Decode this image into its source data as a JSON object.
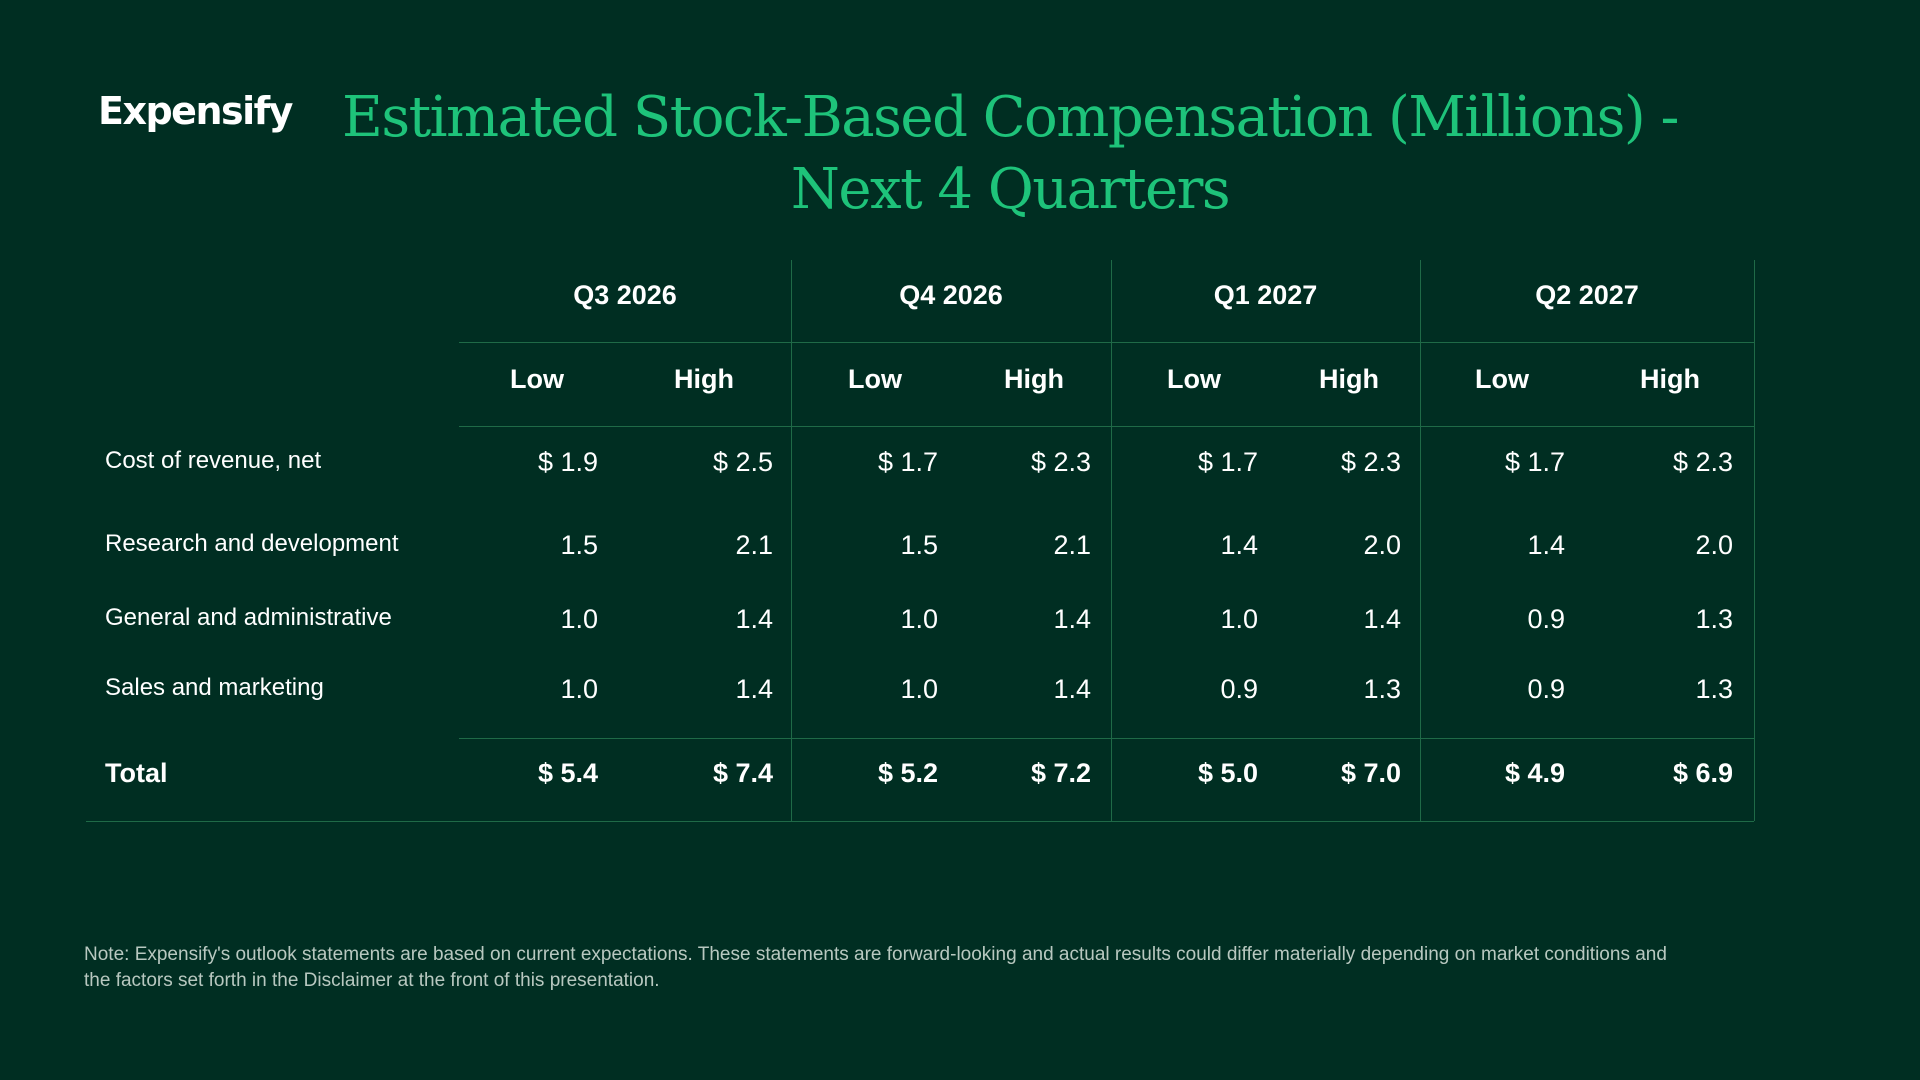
{
  "logo": "Expensify",
  "title_line1": "Estimated Stock-Based Compensation (Millions) -",
  "title_line2": "Next 4 Quarters",
  "quarters": [
    "Q3 2026",
    "Q4 2026",
    "Q1 2027",
    "Q2 2027"
  ],
  "subheaders": {
    "low": "Low",
    "high": "High"
  },
  "rows": [
    {
      "label": "Cost of revenue, net",
      "values": [
        "$ 1.9",
        "$ 2.5",
        "$ 1.7",
        "$ 2.3",
        "$ 1.7",
        "$ 2.3",
        "$ 1.7",
        "$ 2.3"
      ]
    },
    {
      "label": "Research and development",
      "values": [
        "1.5",
        "2.1",
        "1.5",
        "2.1",
        "1.4",
        "2.0",
        "1.4",
        "2.0"
      ]
    },
    {
      "label": "General and administrative",
      "values": [
        "1.0",
        "1.4",
        "1.0",
        "1.4",
        "1.0",
        "1.4",
        "0.9",
        "1.3"
      ]
    },
    {
      "label": "Sales and marketing",
      "values": [
        "1.0",
        "1.4",
        "1.0",
        "1.4",
        "0.9",
        "1.3",
        "0.9",
        "1.3"
      ]
    }
  ],
  "total": {
    "label": "Total",
    "values": [
      "$ 5.4",
      "$ 7.4",
      "$ 5.2",
      "$ 7.2",
      "$ 5.0",
      "$ 7.0",
      "$ 4.9",
      "$ 6.9"
    ]
  },
  "note": "Note: Expensify's outlook statements are based on current expectations. These statements are forward-looking and actual results could differ materially depending on market conditions and the factors set forth in the Disclaimer at the front of this presentation."
}
